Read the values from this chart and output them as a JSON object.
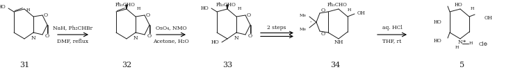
{
  "bg": "#ffffff",
  "fw": 7.48,
  "fh": 1.04,
  "dpi": 100,
  "lc": "#1a1a1a",
  "arrow_color": "#000000",
  "rxn_label_fs": 5.5,
  "num_fs": 8.0,
  "het_fs": 5.5,
  "sub_fs": 5.0,
  "arrow1_labels": [
    "NaH, Ph₂CHBr",
    "DMF, reflux"
  ],
  "arrow2_labels": [
    "OsO₄, NMO",
    "Acetone, H₂O"
  ],
  "arrow3_labels": [
    "2 steps",
    ""
  ],
  "arrow4_labels": [
    "aq. HCl",
    "THF, rt"
  ],
  "numbers": [
    "31",
    "32",
    "33",
    "34",
    "5"
  ]
}
